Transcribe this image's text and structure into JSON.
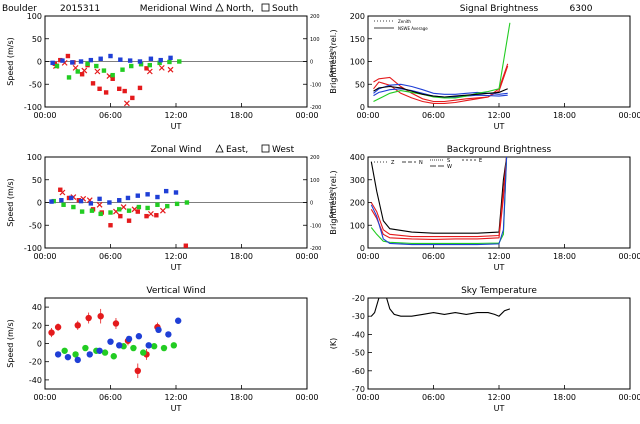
{
  "header": {
    "site": "Boulder",
    "date_code": "2015311"
  },
  "colors": {
    "red": "#e41a1c",
    "green": "#22cc22",
    "blue": "#1f3fd6",
    "black": "#000000"
  },
  "shared": {
    "time_ticks": [
      "00:00",
      "06:00",
      "12:00",
      "18:00",
      "00:00"
    ],
    "time_label": "UT"
  },
  "chart_data": [
    {
      "id": "meridional",
      "type": "scatter",
      "title": "Meridional Wind",
      "legend_text_a": "North,",
      "legend_text_b": "South",
      "ylabel": "Speed (m/s)",
      "ylabel_right": "Speed (m/s)",
      "xlim": [
        0,
        24
      ],
      "ylim": [
        -100,
        100
      ],
      "yticks": [
        -100,
        -50,
        0,
        50,
        100
      ],
      "right_ticks": [
        "200",
        "100",
        "0",
        "-100",
        "-200"
      ],
      "grid": false,
      "series": [
        {
          "color": "red",
          "marker": "square",
          "x": [
            0.9,
            1.4,
            2.1,
            2.6,
            3.4,
            3.9,
            4.4,
            5.0,
            5.6,
            6.2,
            6.8,
            7.3,
            8.0,
            8.7,
            9.3
          ],
          "y": [
            -5,
            3,
            12,
            -2,
            -28,
            -8,
            -48,
            -60,
            -68,
            -38,
            -60,
            -65,
            -80,
            -58,
            -15
          ]
        },
        {
          "color": "red",
          "marker": "x",
          "x": [
            1.0,
            1.8,
            2.8,
            3.6,
            4.8,
            5.9,
            7.5,
            9.6,
            10.7,
            11.5
          ],
          "y": [
            -10,
            -3,
            -14,
            -20,
            -22,
            -32,
            -92,
            -22,
            -14,
            -18
          ]
        },
        {
          "color": "green",
          "marker": "square",
          "x": [
            1.1,
            2.2,
            3.0,
            3.9,
            4.7,
            5.4,
            6.2,
            7.1,
            7.9,
            8.8,
            9.6,
            10.5,
            11.4,
            12.3
          ],
          "y": [
            -10,
            -35,
            -22,
            -5,
            -10,
            -20,
            -30,
            -18,
            -10,
            -6,
            -8,
            -3,
            -1,
            0
          ]
        },
        {
          "color": "blue",
          "marker": "square",
          "x": [
            0.7,
            1.6,
            2.5,
            3.3,
            4.2,
            5.1,
            6.0,
            6.9,
            7.8,
            8.7,
            9.7,
            10.6,
            11.5
          ],
          "y": [
            -3,
            2,
            -2,
            0,
            3,
            6,
            12,
            4,
            2,
            0,
            6,
            3,
            8
          ]
        }
      ]
    },
    {
      "id": "signal",
      "type": "line",
      "title": "Signal Brightness",
      "wavelength": "6300",
      "ylabel": "Brightness (rel.)",
      "legend": [
        "Zenith",
        "NSWE Average"
      ],
      "xlim": [
        0,
        24
      ],
      "ylim": [
        0,
        200
      ],
      "yticks": [
        0,
        50,
        100,
        150,
        200
      ],
      "grid": false,
      "series": [
        {
          "color": "red",
          "x": [
            0.5,
            1,
            2,
            3,
            4,
            5,
            6,
            7,
            8,
            9,
            10,
            11,
            12,
            12.8
          ],
          "y": [
            55,
            62,
            65,
            45,
            30,
            18,
            12,
            12,
            15,
            18,
            20,
            22,
            35,
            90
          ]
        },
        {
          "color": "red",
          "x": [
            0.5,
            1,
            2,
            3,
            4,
            5,
            6,
            7,
            8,
            9,
            10,
            11,
            12,
            12.8
          ],
          "y": [
            40,
            55,
            48,
            30,
            20,
            12,
            8,
            8,
            10,
            14,
            18,
            22,
            40,
            95
          ]
        },
        {
          "color": "blue",
          "x": [
            0.5,
            1,
            2,
            3,
            4,
            5,
            6,
            7,
            8,
            9,
            10,
            11,
            12,
            12.8
          ],
          "y": [
            30,
            40,
            48,
            50,
            45,
            38,
            30,
            28,
            28,
            30,
            32,
            30,
            28,
            30
          ]
        },
        {
          "color": "blue",
          "x": [
            0.5,
            1,
            2,
            3,
            4,
            5,
            6,
            7,
            8,
            9,
            10,
            11,
            12,
            12.8
          ],
          "y": [
            25,
            32,
            38,
            40,
            36,
            30,
            24,
            22,
            22,
            24,
            26,
            25,
            24,
            26
          ]
        },
        {
          "color": "green",
          "x": [
            0.5,
            1,
            2,
            3,
            4,
            5,
            6,
            7,
            8,
            9,
            10,
            11,
            12,
            13
          ],
          "y": [
            12,
            18,
            30,
            36,
            32,
            28,
            22,
            20,
            20,
            24,
            30,
            34,
            40,
            185
          ]
        },
        {
          "color": "black",
          "x": [
            0.5,
            1,
            2,
            3,
            4,
            5,
            6,
            7,
            8,
            9,
            10,
            11,
            12,
            12.8
          ],
          "y": [
            35,
            42,
            45,
            42,
            35,
            28,
            24,
            22,
            24,
            26,
            28,
            30,
            32,
            40
          ]
        }
      ]
    },
    {
      "id": "zonal",
      "type": "scatter",
      "title": "Zonal Wind",
      "legend_text_a": "East,",
      "legend_text_b": "West",
      "ylabel": "Speed (m/s)",
      "ylabel_right": "Speed (m/s)",
      "xlim": [
        0,
        24
      ],
      "ylim": [
        -100,
        100
      ],
      "yticks": [
        -100,
        -50,
        0,
        50,
        100
      ],
      "right_ticks": [
        "200",
        "100",
        "0",
        "-100",
        "-200"
      ],
      "grid": false,
      "series": [
        {
          "color": "red",
          "marker": "square",
          "x": [
            1.4,
            2.2,
            3.1,
            4.4,
            5.2,
            6.0,
            6.9,
            7.7,
            8.5,
            9.3,
            10.2,
            12.9
          ],
          "y": [
            28,
            10,
            5,
            -15,
            -22,
            -50,
            -30,
            -40,
            -20,
            -30,
            -28,
            -95
          ]
        },
        {
          "color": "red",
          "marker": "x",
          "x": [
            1.6,
            2.6,
            3.5,
            4.1,
            5.0,
            6.5,
            7.2,
            8.2,
            9.7,
            10.8
          ],
          "y": [
            22,
            12,
            8,
            5,
            -5,
            -20,
            -10,
            -15,
            -25,
            -18
          ]
        },
        {
          "color": "green",
          "marker": "square",
          "x": [
            0.8,
            1.7,
            2.6,
            3.4,
            4.3,
            5.1,
            6.0,
            6.8,
            7.7,
            8.6,
            9.4,
            10.3,
            11.2,
            12.1,
            13.0
          ],
          "y": [
            3,
            -5,
            -10,
            -20,
            -18,
            -25,
            -22,
            -15,
            -18,
            -10,
            -12,
            -5,
            -8,
            -3,
            0
          ]
        },
        {
          "color": "blue",
          "marker": "square",
          "x": [
            0.6,
            1.5,
            2.4,
            3.3,
            4.2,
            5.0,
            5.9,
            6.8,
            7.6,
            8.5,
            9.4,
            10.3,
            11.1,
            12.0
          ],
          "y": [
            2,
            5,
            10,
            3,
            -2,
            8,
            0,
            5,
            10,
            15,
            18,
            12,
            25,
            22
          ]
        }
      ]
    },
    {
      "id": "background",
      "type": "line",
      "title": "Background Brightness",
      "ylabel": "Brightness (rel.)",
      "legend": [
        "Z",
        "N",
        "S",
        "W",
        "E"
      ],
      "xlim": [
        0,
        24
      ],
      "ylim": [
        0,
        400
      ],
      "yticks": [
        0,
        100,
        200,
        300,
        400
      ],
      "grid": false,
      "series": [
        {
          "color": "black",
          "x": [
            0.3,
            0.8,
            1.4,
            2,
            4,
            6,
            8,
            10,
            12,
            12.4,
            12.7
          ],
          "y": [
            380,
            250,
            120,
            85,
            70,
            65,
            65,
            65,
            70,
            300,
            400
          ]
        },
        {
          "color": "red",
          "x": [
            0.3,
            0.8,
            1.4,
            2,
            4,
            6,
            8,
            10,
            12,
            12.4,
            12.7
          ],
          "y": [
            200,
            160,
            80,
            60,
            50,
            50,
            50,
            50,
            55,
            250,
            400
          ]
        },
        {
          "color": "red",
          "x": [
            0.3,
            0.8,
            1.4,
            2,
            4,
            6,
            8,
            10,
            12,
            12.4,
            12.7
          ],
          "y": [
            170,
            130,
            60,
            45,
            40,
            38,
            40,
            40,
            45,
            220,
            400
          ]
        },
        {
          "color": "green",
          "x": [
            0.3,
            0.8,
            1.4,
            2,
            4,
            6,
            8,
            10,
            12,
            12.4,
            12.7
          ],
          "y": [
            90,
            60,
            30,
            25,
            20,
            20,
            20,
            20,
            22,
            60,
            400
          ]
        },
        {
          "color": "blue",
          "x": [
            0.3,
            0.8,
            1.4,
            2,
            4,
            6,
            8,
            10,
            12,
            12.4,
            12.7
          ],
          "y": [
            190,
            140,
            40,
            20,
            15,
            15,
            15,
            15,
            18,
            80,
            400
          ]
        }
      ]
    },
    {
      "id": "vertical",
      "type": "scatter",
      "title": "Vertical Wind",
      "ylabel": "Speed (m/s)",
      "xlim": [
        0,
        24
      ],
      "ylim": [
        -50,
        50
      ],
      "yticks": [
        -40,
        -20,
        0,
        20,
        40
      ],
      "grid": false,
      "series": [
        {
          "color": "red",
          "marker": "circle_err",
          "x": [
            0.6,
            1.2,
            3.0,
            4.0,
            5.1,
            6.5,
            7.6,
            8.5,
            9.3,
            10.3
          ],
          "y": [
            12,
            18,
            20,
            28,
            30,
            22,
            3,
            -30,
            -12,
            18
          ],
          "err": [
            5,
            4,
            5,
            6,
            8,
            6,
            5,
            8,
            6,
            5
          ]
        },
        {
          "color": "green",
          "marker": "circle",
          "x": [
            1.8,
            2.8,
            3.7,
            4.7,
            5.5,
            6.3,
            7.2,
            8.1,
            9.0,
            10.0,
            10.9,
            11.8
          ],
          "y": [
            -8,
            -12,
            -5,
            -8,
            -10,
            -14,
            -3,
            -5,
            -10,
            -3,
            -5,
            -2
          ]
        },
        {
          "color": "blue",
          "marker": "circle",
          "x": [
            1.2,
            2.1,
            3.0,
            4.1,
            5.0,
            6.0,
            6.8,
            7.7,
            8.6,
            9.5,
            10.4,
            11.3,
            12.2
          ],
          "y": [
            -12,
            -15,
            -18,
            -12,
            -8,
            2,
            -2,
            5,
            8,
            -2,
            15,
            10,
            25
          ]
        }
      ]
    },
    {
      "id": "sky",
      "type": "line",
      "title": "Sky Temperature",
      "ylabel": "(K)",
      "xlim": [
        0,
        24
      ],
      "ylim": [
        -70,
        -20
      ],
      "yticks": [
        -70,
        -60,
        -50,
        -40,
        -30,
        -20
      ],
      "grid": false,
      "series": [
        {
          "color": "black",
          "x": [
            0.3,
            0.6,
            1.0,
            1.3,
            1.7,
            2.0,
            2.4,
            3.0,
            4,
            5,
            6,
            7,
            8,
            9,
            10,
            11,
            11.6,
            12,
            12.5,
            13
          ],
          "y": [
            -30,
            -28,
            -20,
            -18,
            -20,
            -26,
            -29,
            -30,
            -30,
            -29,
            -28,
            -29,
            -28,
            -29,
            -28,
            -28,
            -29,
            -30,
            -27,
            -26
          ]
        }
      ]
    }
  ]
}
